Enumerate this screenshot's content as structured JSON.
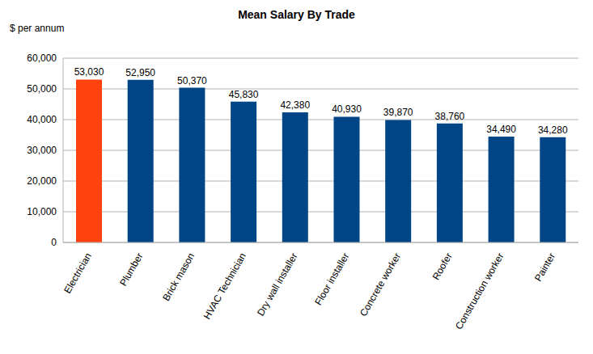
{
  "chart_data": {
    "type": "bar",
    "title": "Mean Salary By Trade",
    "y_label": "$ per annum",
    "categories": [
      "Electrician",
      "Plumber",
      "Brick mason",
      "HVAC Technician",
      "Dry wall installer",
      "Floor installer",
      "Concrete worker",
      "Roofer",
      "Construction worker",
      "Painter"
    ],
    "values": [
      53030,
      52950,
      50370,
      45830,
      42380,
      40930,
      39870,
      38760,
      34490,
      34280
    ],
    "value_labels": [
      "53,030",
      "52,950",
      "50,370",
      "45,830",
      "42,380",
      "40,930",
      "39,870",
      "38,760",
      "34,490",
      "34,280"
    ],
    "colors": [
      "#ff420e",
      "#004586",
      "#004586",
      "#004586",
      "#004586",
      "#004586",
      "#004586",
      "#004586",
      "#004586",
      "#004586"
    ],
    "ylim": [
      0,
      60000
    ],
    "yticks": [
      0,
      {
        "value": 10000,
        "label": "10,000"
      },
      {
        "value": 20000,
        "label": "20,000"
      },
      {
        "value": 30000,
        "label": "30,000"
      },
      {
        "value": 40000,
        "label": "40,000"
      },
      {
        "value": 50000,
        "label": "50,000"
      },
      {
        "value": 60000,
        "label": "60,000"
      }
    ],
    "grid": true,
    "data_labels": true
  }
}
